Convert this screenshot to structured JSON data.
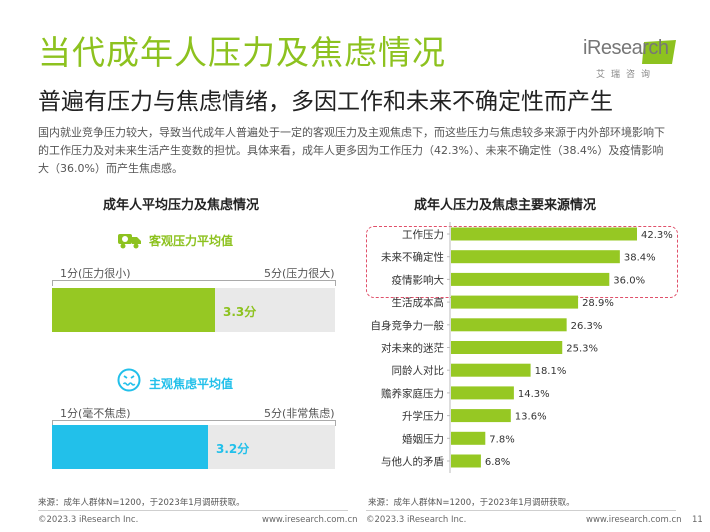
{
  "header": {
    "title": "当代成年人压力及焦虑情况",
    "subtitle": "普遍有压力与焦虑情绪，多因工作和未来不确定性而产生",
    "intro": "国内就业竞争压力较大，导致当代成年人普遍处于一定的客观压力及主观焦虑下，而这些压力与焦虑较多来源于内外部环境影响下的工作压力及对未来生活产生变数的担忧。具体来看，成年人更多因为工作压力（42.3%）、未来不确定性（38.4%）及疫情影响大（36.0%）而产生焦虑感。"
  },
  "logo": {
    "name": "iResearch",
    "sub": "艾瑞咨询"
  },
  "colors": {
    "accent": "#8dc21f",
    "bar_green": "#96c823",
    "bar_blue": "#22c0ea",
    "highlight_border": "#e0506a"
  },
  "left_panel": {
    "title": "成年人平均压力及焦虑情况",
    "pressure": {
      "label": "客观压力平均值",
      "icon": "truck-stress-icon",
      "scale_min_label": "1分(压力很小)",
      "scale_max_label": "5分(压力很大)",
      "value_label": "3.3分"
    },
    "anxiety": {
      "label": "主观焦虑平均值",
      "icon": "anxious-face-icon",
      "scale_min_label": "1分(毫不焦虑)",
      "scale_max_label": "5分(非常焦虑)",
      "value_label": "3.2分"
    },
    "source": "来源：成年人群体N=1200，于2023年1月调研获取。"
  },
  "right_panel": {
    "title": "成年人压力及焦虑主要来源情况",
    "source": "来源：成年人群体N=1200，于2023年1月调研获取。"
  },
  "chart_data": [
    {
      "type": "bar",
      "orientation": "horizontal",
      "categories": [
        "客观压力平均值",
        "主观焦虑平均值"
      ],
      "values": [
        3.3,
        3.2
      ],
      "xlim": [
        1,
        5
      ],
      "value_labels": [
        "3.3分",
        "3.2分"
      ]
    },
    {
      "type": "bar",
      "orientation": "horizontal",
      "categories": [
        "工作压力",
        "未来不确定性",
        "疫情影响大",
        "生活成本高",
        "自身竞争力一般",
        "对未来的迷茫",
        "同龄人对比",
        "赡养家庭压力",
        "升学压力",
        "婚姻压力",
        "与他人的矛盾"
      ],
      "values": [
        42.3,
        38.4,
        36.0,
        28.9,
        26.3,
        25.3,
        18.1,
        14.3,
        13.6,
        7.8,
        6.8
      ],
      "value_labels": [
        "42.3%",
        "38.4%",
        "36.0%",
        "28.9%",
        "26.3%",
        "25.3%",
        "18.1%",
        "14.3%",
        "13.6%",
        "7.8%",
        "6.8%"
      ],
      "highlighted_categories": [
        "工作压力",
        "未来不确定性",
        "疫情影响大"
      ]
    }
  ],
  "footer": {
    "left_copyright": "©2023.3 iResearch Inc.",
    "left_url": "www.iresearch.com.cn",
    "right_copyright": "©2023.3 iResearch Inc.",
    "right_url": "www.iresearch.com.cn",
    "page_number": "11"
  }
}
